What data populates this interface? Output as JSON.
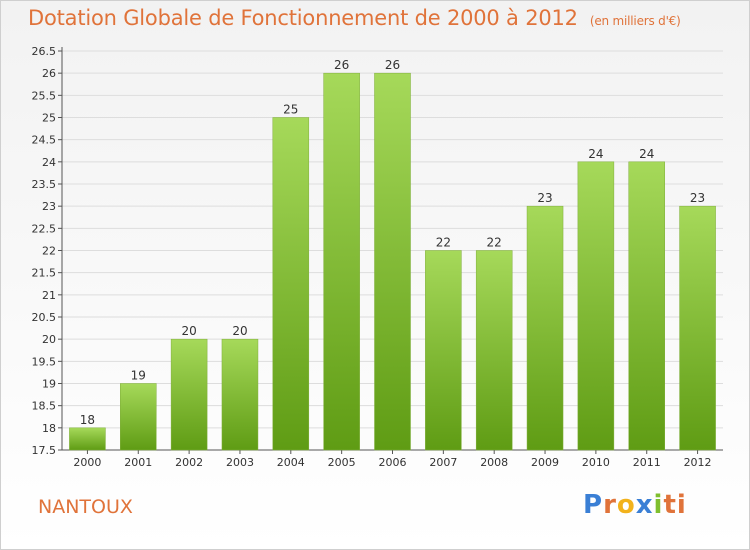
{
  "header": {
    "title": "Dotation Globale de Fonctionnement de 2000 à 2012",
    "unit": "(en milliers d'€)"
  },
  "commune": "NANTOUX",
  "logo": {
    "text": "Proxiti",
    "letters": [
      "P",
      "r",
      "o",
      "x",
      "i",
      "ti"
    ]
  },
  "colors": {
    "title": "#e0733a",
    "bar_top": "#a6d95a",
    "bar_bottom": "#5f9c14",
    "grid": "#dddddd"
  },
  "chart_data": {
    "type": "bar",
    "categories": [
      "2000",
      "2001",
      "2002",
      "2003",
      "2004",
      "2005",
      "2006",
      "2007",
      "2008",
      "2009",
      "2010",
      "2011",
      "2012"
    ],
    "values": [
      18,
      19,
      20,
      20,
      25,
      26,
      26,
      22,
      22,
      23,
      24,
      24,
      23
    ],
    "ylim": [
      17.5,
      26.5
    ],
    "yticks": [
      "17.5",
      "18",
      "18.5",
      "19",
      "19.5",
      "20",
      "20.5",
      "21",
      "21.5",
      "22",
      "22.5",
      "23",
      "23.5",
      "24",
      "24.5",
      "25",
      "25.5",
      "26",
      "26.5"
    ],
    "grid": true
  }
}
